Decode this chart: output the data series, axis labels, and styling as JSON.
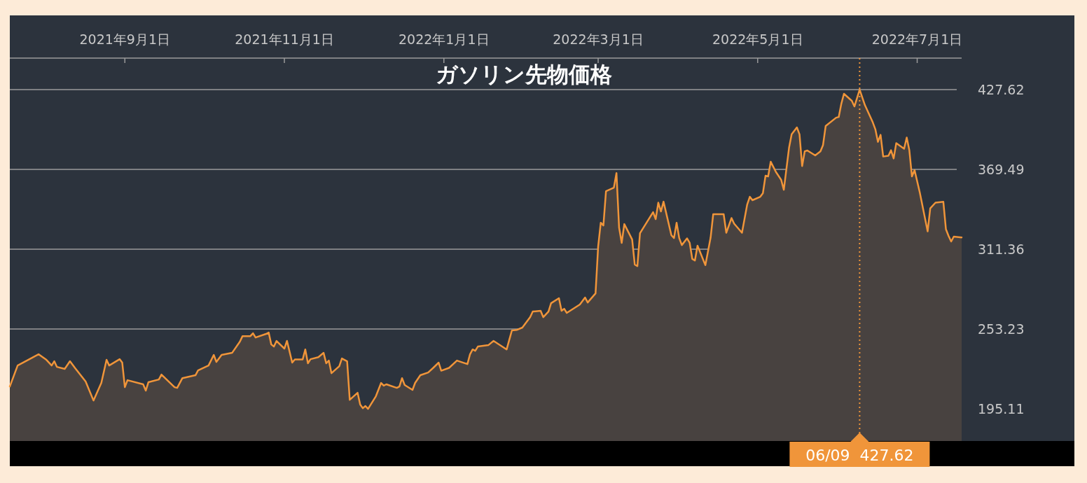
{
  "chart_data": {
    "type": "area",
    "title": "ガソリン先物価格",
    "x": [
      "2021-07-19",
      "2021-07-22",
      "2021-07-27",
      "2021-07-30",
      "2021-08-02",
      "2021-08-04",
      "2021-08-05",
      "2021-08-06",
      "2021-08-09",
      "2021-08-11",
      "2021-08-13",
      "2021-08-17",
      "2021-08-20",
      "2021-08-23",
      "2021-08-25",
      "2021-08-26",
      "2021-08-30",
      "2021-08-31",
      "2021-09-01",
      "2021-09-02",
      "2021-09-08",
      "2021-09-09",
      "2021-09-10",
      "2021-09-14",
      "2021-09-15",
      "2021-09-20",
      "2021-09-21",
      "2021-09-23",
      "2021-09-28",
      "2021-09-29",
      "2021-10-03",
      "2021-10-05",
      "2021-10-06",
      "2021-10-08",
      "2021-10-12",
      "2021-10-15",
      "2021-10-16",
      "2021-10-19",
      "2021-10-20",
      "2021-10-21",
      "2021-10-25",
      "2021-10-26",
      "2021-10-27",
      "2021-10-28",
      "2021-10-29",
      "2021-11-01",
      "2021-11-02",
      "2021-11-04",
      "2021-11-05",
      "2021-11-08",
      "2021-11-09",
      "2021-11-10",
      "2021-11-11",
      "2021-11-14",
      "2021-11-16",
      "2021-11-17",
      "2021-11-18",
      "2021-11-19",
      "2021-11-22",
      "2021-11-23",
      "2021-11-25",
      "2021-11-26",
      "2021-11-29",
      "2021-11-30",
      "2021-12-01",
      "2021-12-02",
      "2021-12-03",
      "2021-12-06",
      "2021-12-08",
      "2021-12-09",
      "2021-12-10",
      "2021-12-14",
      "2021-12-15",
      "2021-12-16",
      "2021-12-17",
      "2021-12-20",
      "2021-12-21",
      "2021-12-23",
      "2021-12-26",
      "2021-12-28",
      "2021-12-30",
      "2021-12-31",
      "2022-01-03",
      "2022-01-06",
      "2022-01-10",
      "2022-01-11",
      "2022-01-12",
      "2022-01-13",
      "2022-01-14",
      "2022-01-18",
      "2022-01-20",
      "2022-01-25",
      "2022-01-27",
      "2022-01-29",
      "2022-01-31",
      "2022-02-03",
      "2022-02-04",
      "2022-02-07",
      "2022-02-08",
      "2022-02-10",
      "2022-02-11",
      "2022-02-14",
      "2022-02-15",
      "2022-02-16",
      "2022-02-17",
      "2022-02-22",
      "2022-02-24",
      "2022-02-25",
      "2022-02-28",
      "2022-03-01",
      "2022-03-02",
      "2022-03-03",
      "2022-03-04",
      "2022-03-07",
      "2022-03-08",
      "2022-03-09",
      "2022-03-10",
      "2022-03-11",
      "2022-03-14",
      "2022-03-15",
      "2022-03-16",
      "2022-03-17",
      "2022-03-22",
      "2022-03-23",
      "2022-03-24",
      "2022-03-25",
      "2022-03-26",
      "2022-03-29",
      "2022-03-30",
      "2022-03-31",
      "2022-04-01",
      "2022-04-02",
      "2022-04-04",
      "2022-04-05",
      "2022-04-06",
      "2022-04-07",
      "2022-04-08",
      "2022-04-11",
      "2022-04-13",
      "2022-04-14",
      "2022-04-18",
      "2022-04-19",
      "2022-04-21",
      "2022-04-22",
      "2022-04-25",
      "2022-04-27",
      "2022-04-28",
      "2022-04-29",
      "2022-05-02",
      "2022-05-03",
      "2022-05-04",
      "2022-05-05",
      "2022-05-06",
      "2022-05-08",
      "2022-05-10",
      "2022-05-11",
      "2022-05-13",
      "2022-05-14",
      "2022-05-16",
      "2022-05-17",
      "2022-05-18",
      "2022-05-19",
      "2022-05-20",
      "2022-05-23",
      "2022-05-25",
      "2022-05-26",
      "2022-05-27",
      "2022-05-31",
      "2022-06-01",
      "2022-06-02",
      "2022-06-03",
      "2022-06-06",
      "2022-06-07",
      "2022-06-08",
      "2022-06-09",
      "2022-06-11",
      "2022-06-14",
      "2022-06-15",
      "2022-06-16",
      "2022-06-17",
      "2022-06-18",
      "2022-06-20",
      "2022-06-21",
      "2022-06-22",
      "2022-06-23",
      "2022-06-26",
      "2022-06-27",
      "2022-06-28",
      "2022-06-29",
      "2022-06-30",
      "2022-07-02",
      "2022-07-05",
      "2022-07-06",
      "2022-07-08",
      "2022-07-11",
      "2022-07-12",
      "2022-07-13",
      "2022-07-14",
      "2022-07-15",
      "2022-07-18"
    ],
    "series": [
      {
        "color": "#f0953a",
        "values": [
          211.4,
          226.7,
          231.8,
          234.9,
          230.8,
          226.7,
          229.8,
          225.7,
          224.2,
          229.8,
          224.7,
          215.0,
          201.2,
          214.0,
          230.8,
          226.7,
          231.3,
          228.8,
          210.9,
          216.0,
          213.0,
          208.4,
          214.5,
          216.5,
          220.1,
          210.9,
          210.4,
          217.5,
          219.6,
          223.1,
          226.7,
          234.4,
          229.3,
          234.4,
          235.9,
          244.1,
          248.1,
          248.1,
          250.2,
          247.1,
          249.7,
          250.7,
          242.0,
          240.5,
          244.6,
          239.0,
          244.6,
          228.8,
          231.1,
          231.1,
          238.4,
          228.3,
          231.3,
          232.8,
          235.9,
          228.3,
          230.3,
          221.1,
          226.2,
          231.8,
          229.8,
          201.7,
          206.8,
          198.2,
          195.6,
          197.2,
          195.1,
          204.3,
          214.0,
          212.0,
          213.0,
          210.4,
          211.4,
          217.5,
          212.5,
          208.9,
          214.0,
          219.6,
          221.6,
          225.1,
          228.8,
          222.9,
          225.0,
          230.3,
          227.7,
          234.9,
          238.4,
          237.4,
          240.5,
          241.5,
          244.6,
          238.4,
          252.2,
          252.7,
          254.3,
          261.9,
          266.0,
          266.5,
          261.9,
          266.0,
          272.1,
          275.7,
          266.5,
          268.0,
          265.0,
          271.1,
          276.2,
          272.6,
          279.2,
          313.4,
          330.7,
          328.7,
          353.7,
          356.2,
          366.9,
          327.2,
          316.0,
          329.7,
          318.5,
          300.2,
          299.1,
          323.1,
          338.4,
          333.3,
          345.3,
          338.9,
          346.0,
          321.6,
          319.5,
          330.7,
          319.5,
          314.4,
          319.3,
          316.0,
          304.3,
          303.2,
          314.0,
          299.8,
          319.8,
          336.9,
          336.9,
          323.4,
          334.1,
          330.0,
          323.4,
          344.0,
          349.6,
          347.1,
          349.6,
          352.2,
          364.9,
          364.4,
          375.1,
          367.6,
          361.9,
          354.7,
          385.3,
          395.1,
          400.1,
          395.1,
          372.0,
          382.7,
          383.3,
          379.7,
          382.7,
          387.3,
          401.1,
          407.2,
          407.7,
          417.4,
          424.6,
          419.5,
          415.4,
          421.5,
          427.62,
          416.4,
          403.9,
          398.8,
          389.6,
          394.7,
          378.9,
          379.5,
          383.5,
          377.5,
          388.7,
          384.6,
          392.7,
          383.5,
          364.4,
          369.0,
          352.7,
          324.4,
          341.2,
          345.3,
          346.0,
          325.9,
          321.1,
          317.0,
          320.6,
          320.0
        ]
      }
    ],
    "xlim": [
      "2021-07-19",
      "2022-07-18"
    ],
    "xticks": [
      {
        "value": "2021-09-01",
        "label": "2021年9月1日"
      },
      {
        "value": "2021-11-01",
        "label": "2021年11月1日"
      },
      {
        "value": "2022-01-01",
        "label": "2022年1月1日"
      },
      {
        "value": "2022-03-01",
        "label": "2022年3月1日"
      },
      {
        "value": "2022-05-01",
        "label": "2022年5月1日"
      },
      {
        "value": "2022-07-01",
        "label": "2022年7月1日"
      }
    ],
    "ylim": [
      171.7,
      450.6
    ],
    "yticks": [
      195.11,
      253.23,
      311.36,
      369.49,
      427.62
    ],
    "grid": "y",
    "ref_lines": [
      {
        "axis": "x",
        "value": "2022-06-09",
        "color": "#f0953a",
        "line_style": "dotted"
      }
    ],
    "annotations": [
      "06/09  427.62"
    ]
  }
}
